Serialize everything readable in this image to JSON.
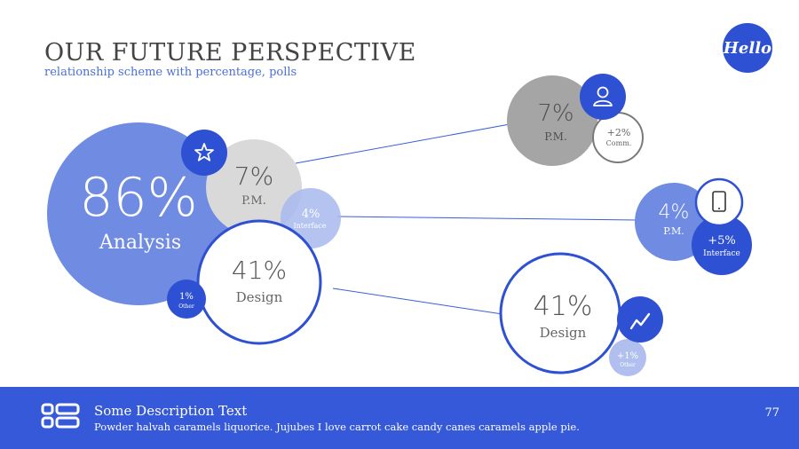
{
  "header": {
    "title": "OUR FUTURE PERSPECTIVE",
    "subtitle": "relationship scheme with percentage, polls",
    "logo_text": "Hello"
  },
  "left_cluster": {
    "analysis": {
      "value": "86%",
      "label": "Analysis"
    },
    "pm": {
      "value": "7%",
      "label": "P.M."
    },
    "interface": {
      "value": "4%",
      "label": "Interface"
    },
    "design": {
      "value": "41%",
      "label": "Design"
    },
    "other": {
      "value": "1%",
      "label": "Other"
    }
  },
  "right_pm": {
    "value": "7%",
    "label": "P.M.",
    "badge": {
      "value": "+2%",
      "label": "Comm."
    }
  },
  "right_interface": {
    "value": "4%",
    "label": "P.M.",
    "badge": {
      "value": "+5%",
      "label": "Interface"
    }
  },
  "right_design": {
    "value": "41%",
    "label": "Design",
    "badge": {
      "value": "+1%",
      "label": "Other"
    }
  },
  "icons": {
    "star": "star-icon",
    "user": "user-icon",
    "tablet": "tablet-icon",
    "trend": "trend-icon",
    "footer": "grid-list-icon"
  },
  "footer": {
    "title": "Some Description Text",
    "text": "Powder halvah caramels liquorice. Jujubes I love carrot cake candy canes caramels apple pie.",
    "page_number": "77"
  },
  "colors": {
    "accent": "#2e50d2",
    "analysis": "#6f8be2",
    "grey_light": "#d8d8d8",
    "grey_dark": "#a5a5a5",
    "footer": "#3559d8"
  }
}
